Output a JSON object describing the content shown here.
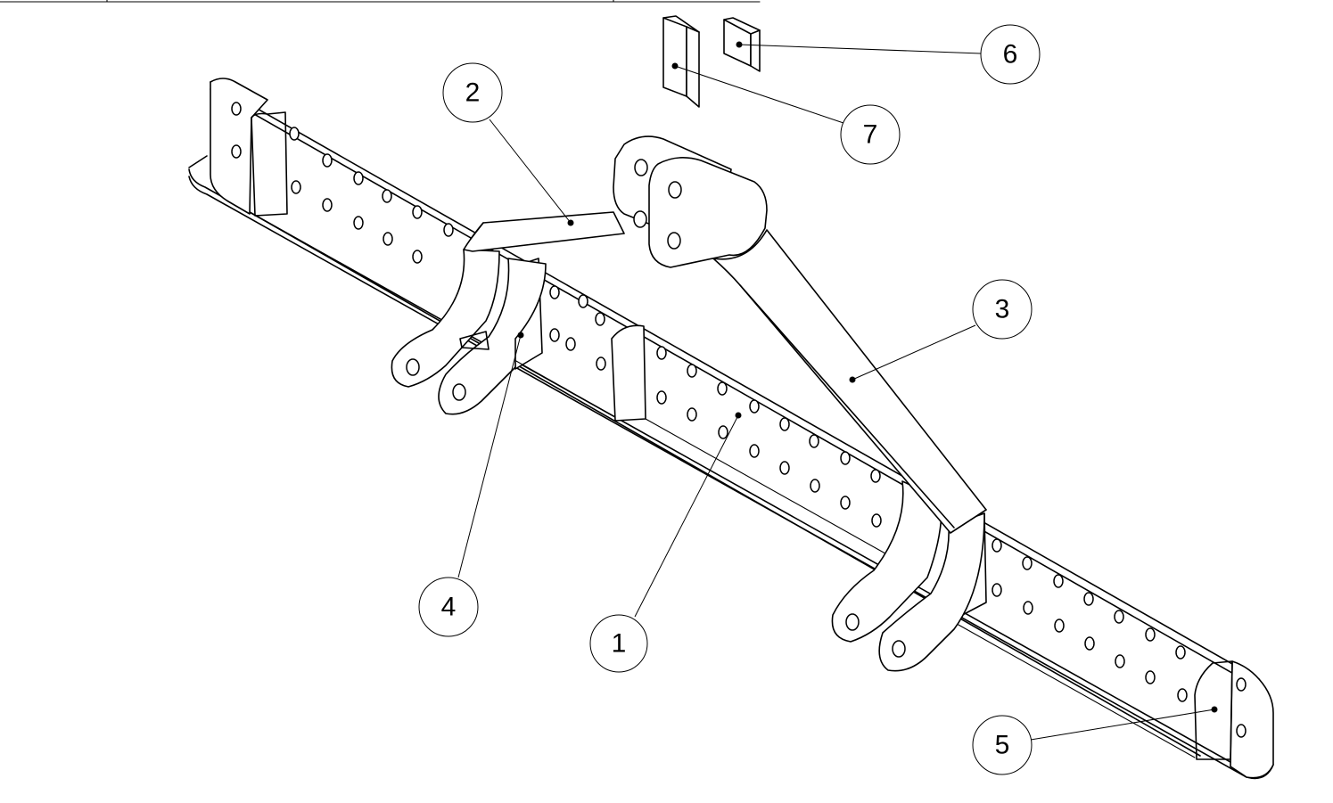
{
  "balloons": [
    {
      "number": "1"
    },
    {
      "number": "2"
    },
    {
      "number": "3"
    },
    {
      "number": "4"
    },
    {
      "number": "5"
    },
    {
      "number": "6"
    },
    {
      "number": "7"
    }
  ]
}
